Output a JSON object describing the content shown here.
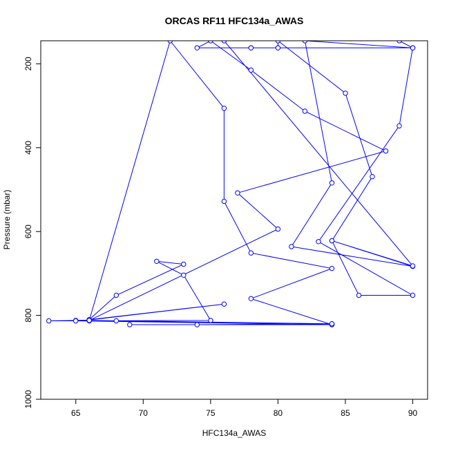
{
  "chart_data": {
    "type": "line",
    "title": "ORCAS RF11 HFC134a_AWAS",
    "xlabel": "HFC134a_AWAS",
    "ylabel": "Pressure (mbar)",
    "xlim": [
      62.4,
      91.1
    ],
    "ylim": [
      1000,
      145
    ],
    "y_reversed": true,
    "x_ticks": [
      65,
      70,
      75,
      80,
      85,
      90
    ],
    "y_ticks": [
      200,
      400,
      600,
      800,
      1000
    ],
    "grid": false,
    "legend": "none",
    "series_color": "#0000ff",
    "series": [
      {
        "points": [
          [
            84,
            822
          ],
          [
            69,
            822
          ],
          [
            74,
            822
          ],
          [
            84,
            820
          ],
          [
            68,
            813
          ],
          [
            66,
            813
          ],
          [
            63,
            813
          ],
          [
            65,
            812
          ],
          [
            66,
            811
          ],
          [
            76,
            773
          ],
          [
            66,
            810
          ],
          [
            68,
            752
          ],
          [
            73,
            678
          ],
          [
            71,
            671
          ],
          [
            73,
            704
          ],
          [
            75,
            812
          ],
          [
            65,
            813
          ],
          [
            84,
            822
          ],
          [
            78,
            760
          ],
          [
            84,
            688
          ],
          [
            78,
            651
          ],
          [
            76,
            528
          ],
          [
            76,
            306
          ],
          [
            72,
            145
          ],
          [
            66,
            812
          ],
          [
            84,
            820
          ],
          [
            66,
            812
          ],
          [
            80,
            594
          ],
          [
            77,
            508
          ],
          [
            88,
            408
          ],
          [
            82,
            313
          ],
          [
            78,
            215
          ],
          [
            75,
            145
          ],
          [
            74,
            162
          ],
          [
            78,
            162
          ],
          [
            80,
            162
          ],
          [
            90,
            162
          ],
          [
            89,
            145
          ],
          [
            90,
            162
          ],
          [
            78,
            162
          ],
          [
            80,
            162
          ],
          [
            80,
            145
          ],
          [
            85,
            270
          ],
          [
            87,
            469
          ],
          [
            84,
            622
          ],
          [
            90,
            683
          ],
          [
            81,
            636
          ],
          [
            84,
            484
          ],
          [
            82,
            145
          ],
          [
            90,
            162
          ],
          [
            89,
            348
          ],
          [
            83,
            624
          ],
          [
            90,
            752
          ],
          [
            86,
            752
          ],
          [
            84,
            622
          ],
          [
            90,
            682
          ],
          [
            76,
            145
          ]
        ]
      }
    ]
  }
}
